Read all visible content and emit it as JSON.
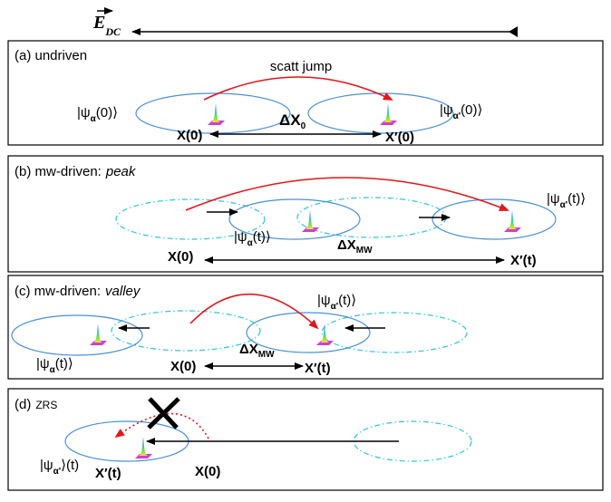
{
  "field": {
    "symbol": "E",
    "subscript": "DC"
  },
  "panels": [
    {
      "label": "(a) undriven",
      "jump": "scatt jump",
      "ket_initial": {
        "text": "|ψ",
        "sub": "α",
        "arg": "(0)⟩"
      },
      "ket_final": {
        "text": "|ψ",
        "sub": "α'",
        "arg": "(0)⟩"
      },
      "x_initial": "X(0)",
      "x_final": "X′(0)",
      "distance": {
        "text": "ΔX",
        "sub": "0"
      }
    },
    {
      "label": "(b) mw-driven:",
      "label_emphasis": "peak",
      "ket_initial": {
        "text": "|ψ",
        "sub": "α",
        "arg": "(t)⟩"
      },
      "ket_final": {
        "text": "|ψ",
        "sub": "α'",
        "arg": "(t)⟩"
      },
      "x_initial": "X(0)",
      "x_final": "X′(t)",
      "distance": {
        "text": "ΔX",
        "sub": "MW"
      }
    },
    {
      "label": "(c) mw-driven:",
      "label_emphasis": "valley",
      "ket_initial": {
        "text": "|ψ",
        "sub": "α",
        "arg": "(t)⟩"
      },
      "ket_final": {
        "text": "|ψ",
        "sub": "α'",
        "arg": "(t)⟩"
      },
      "x_initial": "X(0)",
      "x_final": "X′(t)",
      "distance": {
        "text": "ΔX",
        "sub": "MW"
      }
    },
    {
      "label": "(d)",
      "label_small": "ZRS",
      "ket_final": {
        "text": "|ψ",
        "sub": "α'",
        "arg": "⟩(t)"
      },
      "x_initial": "X(0)",
      "x_final": "X′(t)"
    }
  ]
}
